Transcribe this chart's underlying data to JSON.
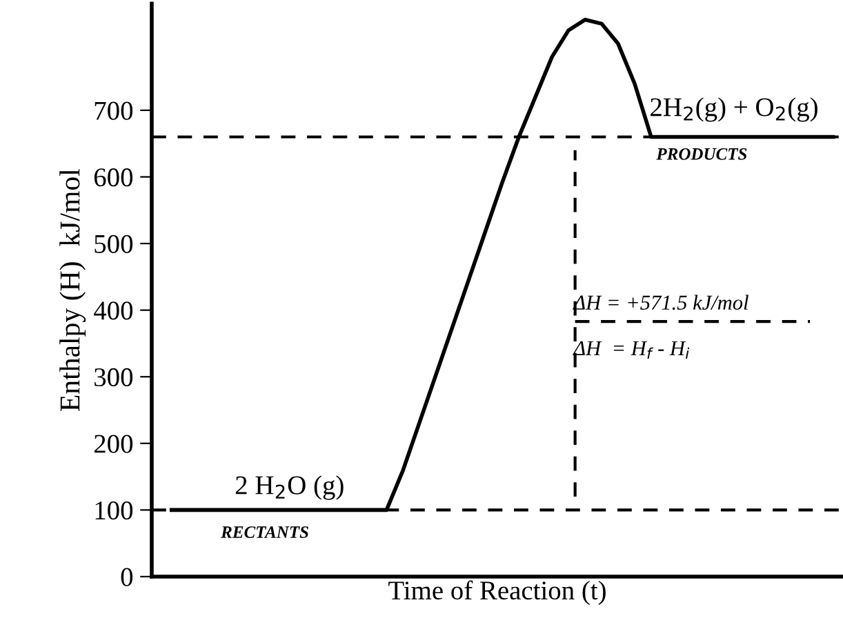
{
  "chart_data": {
    "type": "line",
    "ylabel": "Enthalpy (H)  kJ/mol",
    "xlabel": "Time of Reaction (t)",
    "categories": [
      null,
      null,
      null,
      null,
      null,
      null,
      null,
      null,
      null,
      null,
      null,
      null,
      null,
      null,
      null,
      null,
      null,
      null,
      null,
      null,
      null,
      null,
      null,
      null,
      null,
      null,
      null,
      null,
      null,
      null,
      null,
      null,
      null,
      null,
      null,
      null,
      null,
      null,
      null,
      null,
      null
    ],
    "series": [
      {
        "color": "#000000",
        "values": [
          100,
          100,
          100,
          100,
          100,
          100,
          100,
          100,
          100,
          100,
          100,
          100,
          100,
          100,
          160,
          232,
          304,
          376,
          448,
          520,
          592,
          660,
          720,
          780,
          820,
          836,
          830,
          800,
          740,
          660,
          660,
          660,
          660,
          660,
          660,
          660,
          660,
          660,
          660,
          660,
          660
        ]
      }
    ],
    "ylim": [
      0,
      860
    ],
    "yticks": [
      0,
      100,
      200,
      300,
      400,
      500,
      600,
      700
    ],
    "ref_lines": [
      {
        "axis": "y",
        "value": 660,
        "color": "#000000",
        "line_style": "dashed"
      },
      {
        "axis": "y",
        "value": 100,
        "color": "#000000",
        "line_style": "dashed"
      }
    ],
    "annotations": [
      "2 H$_{2}$O (g)",
      "RECTANTS",
      "2H$_{2}$(g) + O$_{2}$(g)",
      "PRODUCTS",
      "ΔH = +571.5 kJ/mol",
      "ΔH  = H$_{f}$ - H$_{i}$"
    ],
    "marker": "none",
    "line_style": "solid",
    "grid": false,
    "legend": false,
    "tick_labels": "y"
  }
}
